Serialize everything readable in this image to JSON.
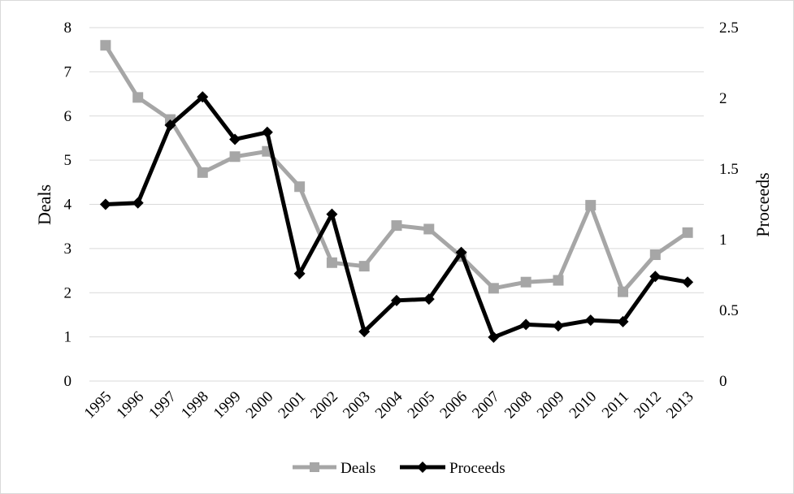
{
  "chart_data": {
    "type": "line",
    "title": "",
    "xlabel": "",
    "ylabel": "Deals",
    "y2label": "Proceeds",
    "categories": [
      "1995",
      "1996",
      "1997",
      "1998",
      "1999",
      "2000",
      "2001",
      "2002",
      "2003",
      "2004",
      "2005",
      "2006",
      "2007",
      "2008",
      "2009",
      "2010",
      "2011",
      "2012",
      "2013"
    ],
    "ylim": [
      0,
      8
    ],
    "yticks": [
      "0",
      "1",
      "2",
      "3",
      "4",
      "5",
      "6",
      "7",
      "8"
    ],
    "y2lim": [
      0,
      2.5
    ],
    "y2ticks": [
      "0",
      "0.5",
      "1",
      "1.5",
      "2",
      "2.5"
    ],
    "grid": true,
    "legend_position": "bottom",
    "series": [
      {
        "name": "Deals",
        "axis": "left",
        "color": "#a6a6a6",
        "marker": "square",
        "values": [
          7.6,
          6.42,
          5.92,
          4.72,
          5.08,
          5.2,
          4.4,
          2.68,
          2.6,
          3.52,
          3.44,
          2.82,
          2.1,
          2.24,
          2.28,
          3.98,
          2.02,
          2.86,
          3.36
        ]
      },
      {
        "name": "Proceeds",
        "axis": "right",
        "color": "#000000",
        "marker": "diamond",
        "values": [
          1.25,
          1.26,
          1.81,
          2.01,
          1.71,
          1.76,
          0.76,
          1.18,
          0.35,
          0.57,
          0.58,
          0.91,
          0.31,
          0.4,
          0.39,
          0.43,
          0.42,
          0.74,
          0.7
        ]
      }
    ]
  }
}
